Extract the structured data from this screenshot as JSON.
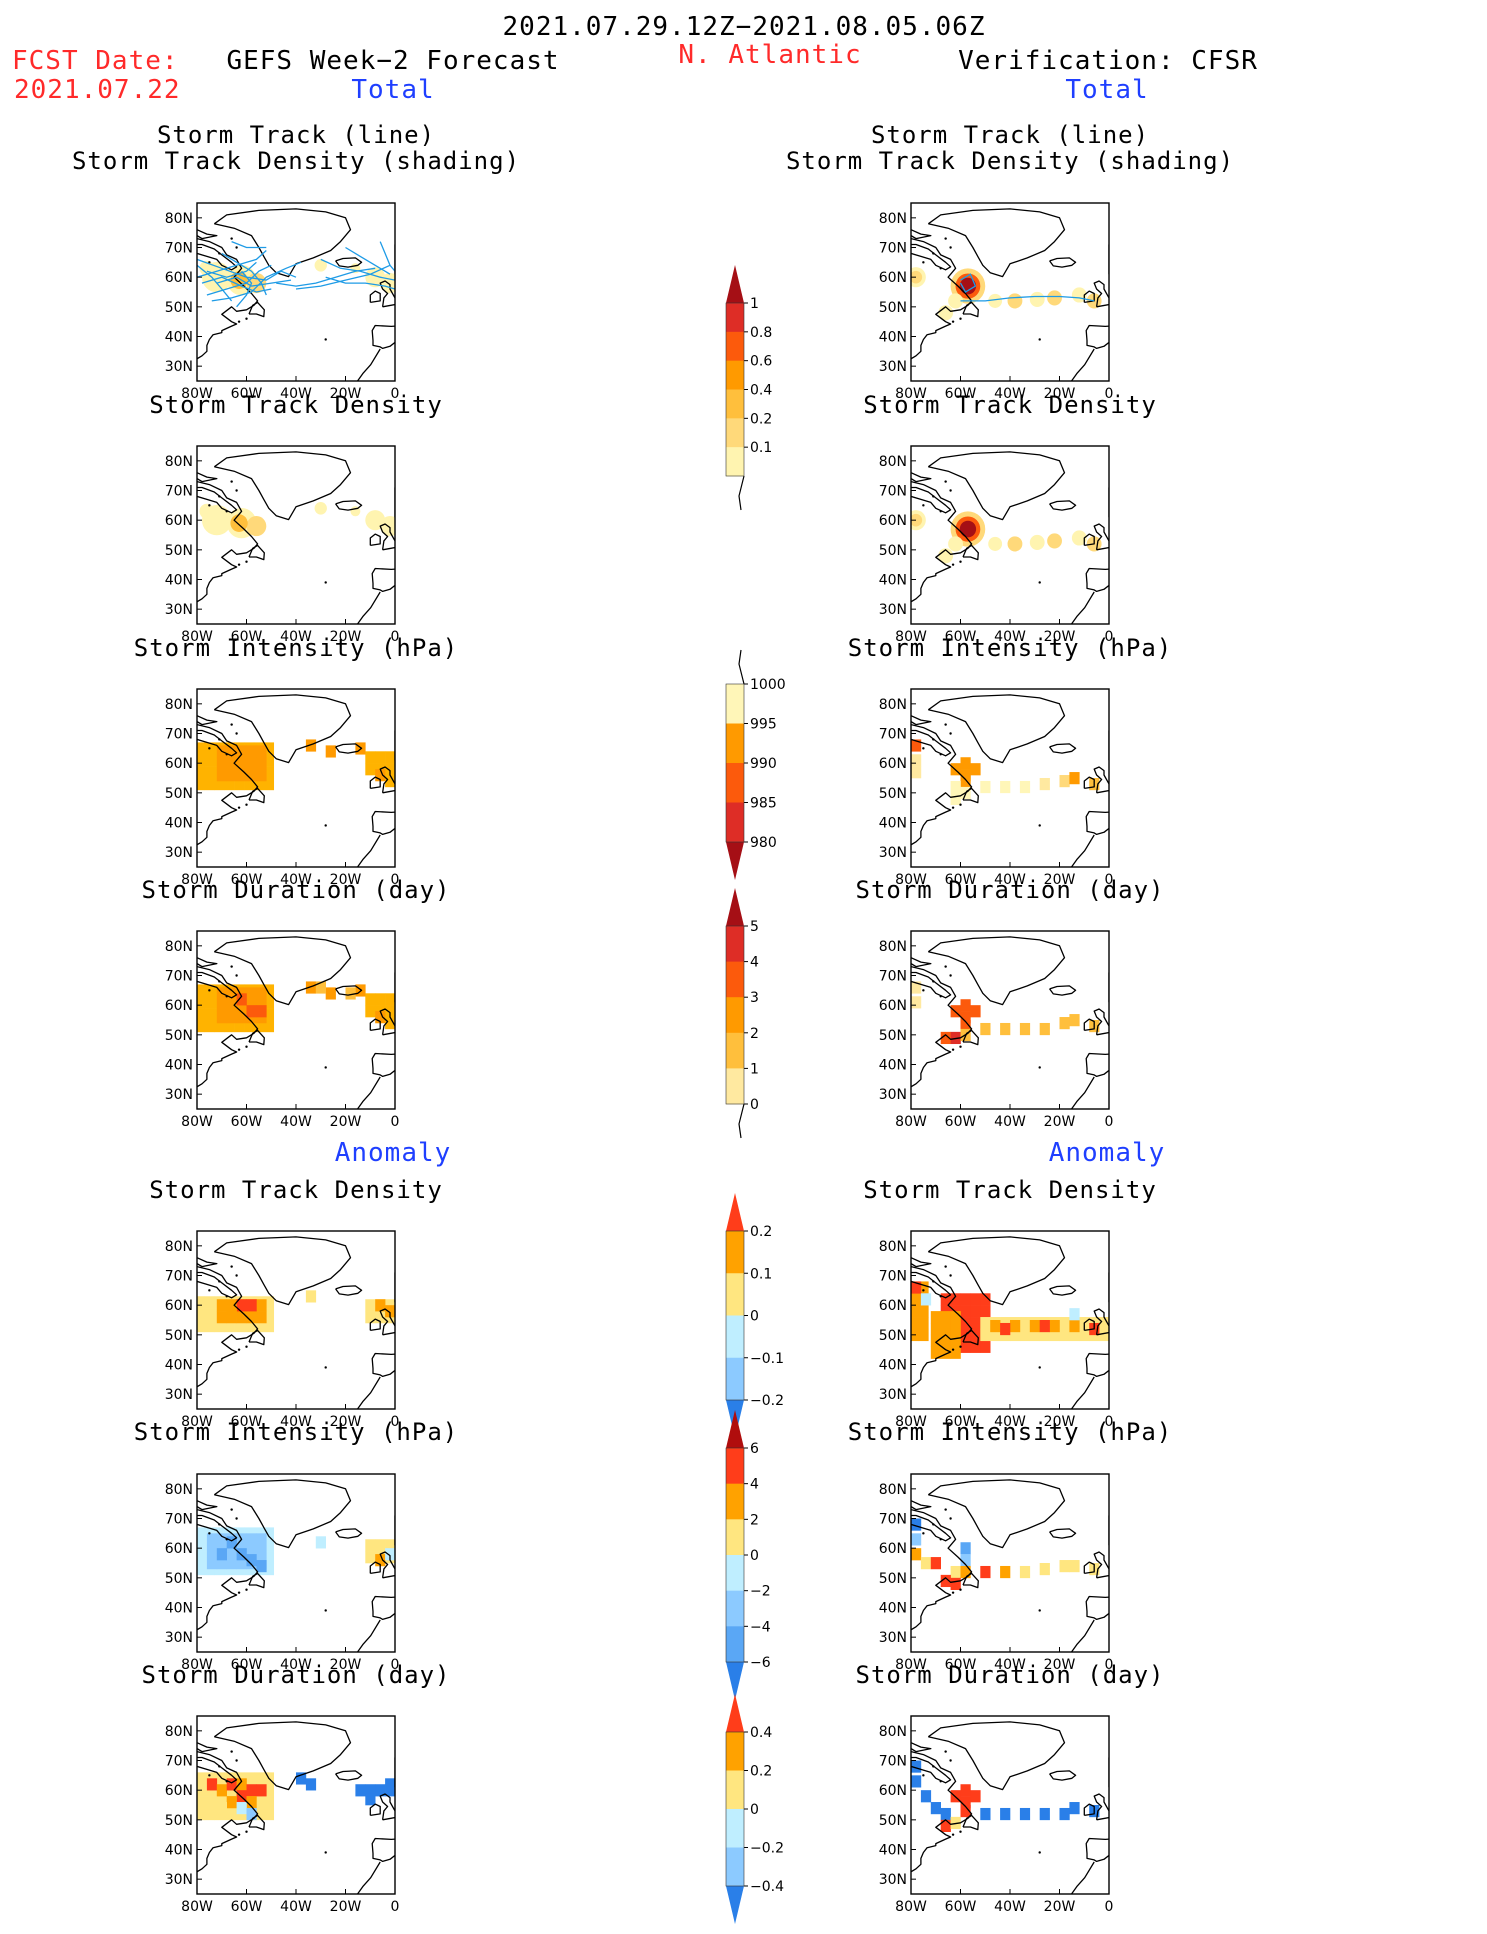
{
  "header": {
    "date_range": "2021.07.29.12Z−2021.08.05.06Z",
    "fcst_label": "FCST Date:",
    "fcst_date": "2021.07.22",
    "forecast_title": "GEFS Week−2 Forecast",
    "region": "N. Atlantic",
    "verification_title": "Verification: CFSR",
    "section_total": "Total",
    "section_anomaly": "Anomaly"
  },
  "colors": {
    "red_text": "#ff2a2a",
    "blue_text": "#1f3fff",
    "track_line": "#1e9be6"
  },
  "chart_data": [
    {
      "type": "heatmap",
      "id": "fc-track",
      "side": "forecast",
      "title_lines": [
        "Storm Track (line)",
        "Storm Track Density (shading)"
      ],
      "xlim": [
        -80,
        0
      ],
      "ylim": [
        25,
        85
      ],
      "x_ticks": [
        "80W",
        "60W",
        "40W",
        "20W",
        "0"
      ],
      "y_ticks": [
        "80N",
        "70N",
        "60N",
        "50N",
        "40N",
        "30N"
      ],
      "scale": "track",
      "tracks": true
    },
    {
      "type": "heatmap",
      "id": "vf-track",
      "side": "verification",
      "title_lines": [
        "Storm Track (line)",
        "Storm Track Density (shading)"
      ],
      "xlim": [
        -80,
        0
      ],
      "ylim": [
        25,
        85
      ],
      "x_ticks": [
        "80W",
        "60W",
        "40W",
        "20W",
        "0"
      ],
      "y_ticks": [
        "80N",
        "70N",
        "60N",
        "50N",
        "40N",
        "30N"
      ],
      "scale": "track",
      "tracks": true
    },
    {
      "type": "heatmap",
      "id": "fc-density",
      "side": "forecast",
      "title_lines": [
        "Storm Track Density"
      ],
      "xlim": [
        -80,
        0
      ],
      "ylim": [
        25,
        85
      ],
      "x_ticks": [
        "80W",
        "60W",
        "40W",
        "20W",
        "0"
      ],
      "y_ticks": [
        "80N",
        "70N",
        "60N",
        "50N",
        "40N",
        "30N"
      ],
      "scale": "track"
    },
    {
      "type": "heatmap",
      "id": "vf-density",
      "side": "verification",
      "title_lines": [
        "Storm Track Density"
      ],
      "xlim": [
        -80,
        0
      ],
      "ylim": [
        25,
        85
      ],
      "x_ticks": [
        "80W",
        "60W",
        "40W",
        "20W",
        "0"
      ],
      "y_ticks": [
        "80N",
        "70N",
        "60N",
        "50N",
        "40N",
        "30N"
      ],
      "scale": "track"
    },
    {
      "type": "heatmap",
      "id": "fc-intensity",
      "side": "forecast",
      "title_lines": [
        "Storm Intensity (hPa)"
      ],
      "xlim": [
        -80,
        0
      ],
      "ylim": [
        25,
        85
      ],
      "x_ticks": [
        "80W",
        "60W",
        "40W",
        "20W",
        "0"
      ],
      "y_ticks": [
        "80N",
        "70N",
        "60N",
        "50N",
        "40N",
        "30N"
      ],
      "scale": "intensity"
    },
    {
      "type": "heatmap",
      "id": "vf-intensity",
      "side": "verification",
      "title_lines": [
        "Storm Intensity (hPa)"
      ],
      "xlim": [
        -80,
        0
      ],
      "ylim": [
        25,
        85
      ],
      "x_ticks": [
        "80W",
        "60W",
        "40W",
        "20W",
        "0"
      ],
      "y_ticks": [
        "80N",
        "70N",
        "60N",
        "50N",
        "40N",
        "30N"
      ],
      "scale": "intensity"
    },
    {
      "type": "heatmap",
      "id": "fc-duration",
      "side": "forecast",
      "title_lines": [
        "Storm Duration (day)"
      ],
      "xlim": [
        -80,
        0
      ],
      "ylim": [
        25,
        85
      ],
      "x_ticks": [
        "80W",
        "60W",
        "40W",
        "20W",
        "0"
      ],
      "y_ticks": [
        "80N",
        "70N",
        "60N",
        "50N",
        "40N",
        "30N"
      ],
      "scale": "duration"
    },
    {
      "type": "heatmap",
      "id": "vf-duration",
      "side": "verification",
      "title_lines": [
        "Storm Duration (day)"
      ],
      "xlim": [
        -80,
        0
      ],
      "ylim": [
        25,
        85
      ],
      "x_ticks": [
        "80W",
        "60W",
        "40W",
        "20W",
        "0"
      ],
      "y_ticks": [
        "80N",
        "70N",
        "60N",
        "50N",
        "40N",
        "30N"
      ],
      "scale": "duration"
    },
    {
      "type": "heatmap",
      "id": "fc-anom-density",
      "side": "forecast",
      "title_lines": [
        "Storm Track Density"
      ],
      "xlim": [
        -80,
        0
      ],
      "ylim": [
        25,
        85
      ],
      "x_ticks": [
        "80W",
        "60W",
        "40W",
        "20W",
        "0"
      ],
      "y_ticks": [
        "80N",
        "70N",
        "60N",
        "50N",
        "40N",
        "30N"
      ],
      "scale": "anom_density"
    },
    {
      "type": "heatmap",
      "id": "vf-anom-density",
      "side": "verification",
      "title_lines": [
        "Storm Track Density"
      ],
      "xlim": [
        -80,
        0
      ],
      "ylim": [
        25,
        85
      ],
      "x_ticks": [
        "80W",
        "60W",
        "40W",
        "20W",
        "0"
      ],
      "y_ticks": [
        "80N",
        "70N",
        "60N",
        "50N",
        "40N",
        "30N"
      ],
      "scale": "anom_density"
    },
    {
      "type": "heatmap",
      "id": "fc-anom-intensity",
      "side": "forecast",
      "title_lines": [
        "Storm Intensity (hPa)"
      ],
      "xlim": [
        -80,
        0
      ],
      "ylim": [
        25,
        85
      ],
      "x_ticks": [
        "80W",
        "60W",
        "40W",
        "20W",
        "0"
      ],
      "y_ticks": [
        "80N",
        "70N",
        "60N",
        "50N",
        "40N",
        "30N"
      ],
      "scale": "anom_intensity"
    },
    {
      "type": "heatmap",
      "id": "vf-anom-intensity",
      "side": "verification",
      "title_lines": [
        "Storm Intensity (hPa)"
      ],
      "xlim": [
        -80,
        0
      ],
      "ylim": [
        25,
        85
      ],
      "x_ticks": [
        "80W",
        "60W",
        "40W",
        "20W",
        "0"
      ],
      "y_ticks": [
        "80N",
        "70N",
        "60N",
        "50N",
        "40N",
        "30N"
      ],
      "scale": "anom_intensity"
    },
    {
      "type": "heatmap",
      "id": "fc-anom-duration",
      "side": "forecast",
      "title_lines": [
        "Storm Duration (day)"
      ],
      "xlim": [
        -80,
        0
      ],
      "ylim": [
        25,
        85
      ],
      "x_ticks": [
        "80W",
        "60W",
        "40W",
        "20W",
        "0"
      ],
      "y_ticks": [
        "80N",
        "70N",
        "60N",
        "50N",
        "40N",
        "30N"
      ],
      "scale": "anom_duration"
    },
    {
      "type": "heatmap",
      "id": "vf-anom-duration",
      "side": "verification",
      "title_lines": [
        "Storm Duration (day)"
      ],
      "xlim": [
        -80,
        0
      ],
      "ylim": [
        25,
        85
      ],
      "x_ticks": [
        "80W",
        "60W",
        "40W",
        "20W",
        "0"
      ],
      "y_ticks": [
        "80N",
        "70N",
        "60N",
        "50N",
        "40N",
        "30N"
      ],
      "scale": "anom_duration"
    }
  ],
  "colorbars": {
    "track": {
      "labels": [
        "1",
        "0.8",
        "0.6",
        "0.4",
        "0.2",
        "0.1"
      ],
      "colors": [
        "#a50f15",
        "#de2d26",
        "#fc5a0c",
        "#ff9a00",
        "#ffbf3c",
        "#ffd97a",
        "#fff4b0"
      ]
    },
    "intensity": {
      "labels": [
        "1000",
        "995",
        "990",
        "985",
        "980"
      ],
      "colors": [
        "#fff6b8",
        "#ff9a00",
        "#fc5a0c",
        "#de2d26",
        "#a50f15"
      ]
    },
    "duration": {
      "labels": [
        "5",
        "4",
        "3",
        "2",
        "1",
        "0"
      ],
      "colors": [
        "#a50f15",
        "#de2d26",
        "#fc5a0c",
        "#ff9a00",
        "#ffbf3c",
        "#ffe9a0"
      ]
    },
    "anom_density": {
      "labels": [
        "0.2",
        "0.1",
        "0",
        "−0.1",
        "−0.2"
      ],
      "colors": [
        "#ff3d1a",
        "#ffa200",
        "#ffe680",
        "#bfeeff",
        "#8ccaff",
        "#2a7fe8"
      ]
    },
    "anom_intensity": {
      "labels": [
        "6",
        "4",
        "2",
        "0",
        "−2",
        "−4",
        "−6"
      ],
      "colors": [
        "#b00d0d",
        "#ff3d1a",
        "#ffa200",
        "#ffe680",
        "#bfeeff",
        "#8ccaff",
        "#5aa7f5",
        "#2a7fe8"
      ]
    },
    "anom_duration": {
      "labels": [
        "0.4",
        "0.2",
        "0",
        "−0.2",
        "−0.4"
      ],
      "colors": [
        "#ff3d1a",
        "#ffa200",
        "#ffe680",
        "#bfeeff",
        "#8ccaff",
        "#2a7fe8"
      ]
    }
  }
}
